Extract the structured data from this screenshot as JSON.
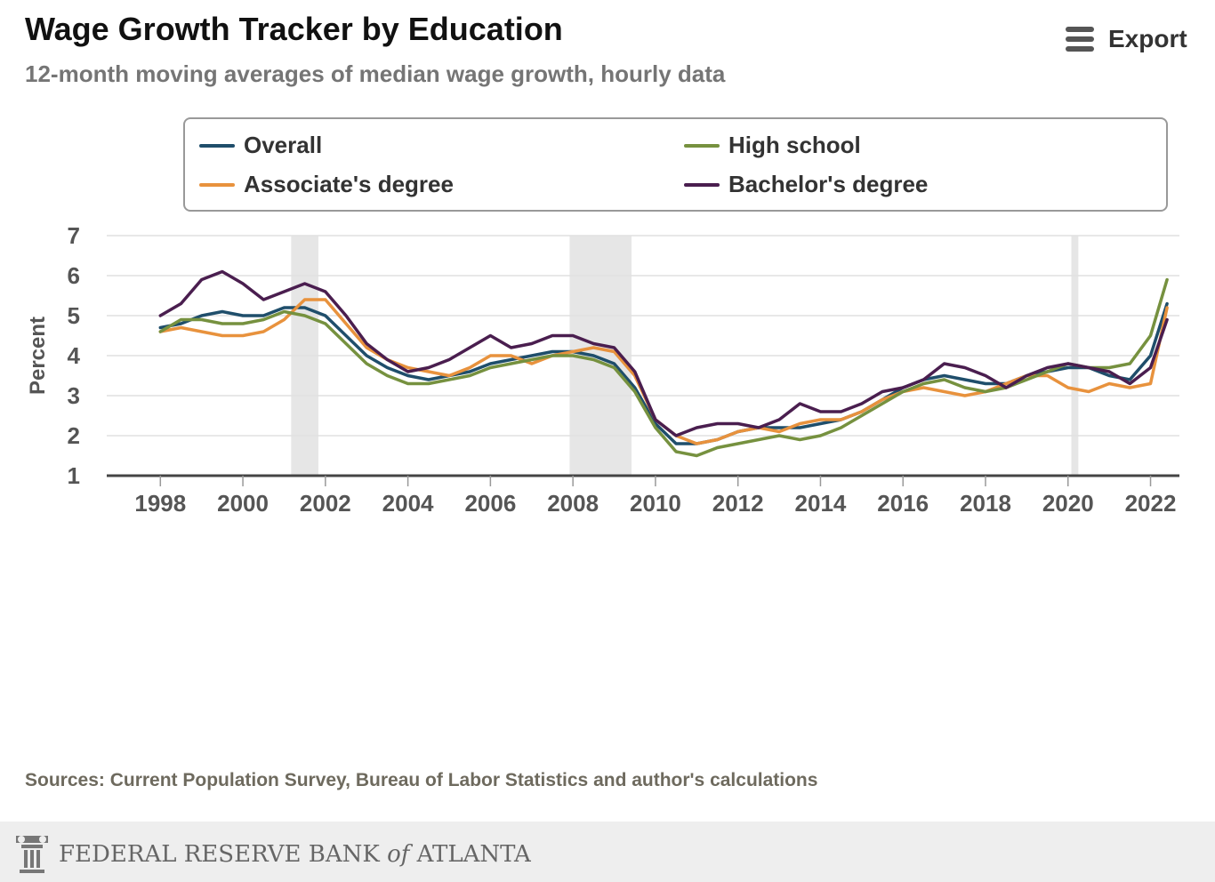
{
  "header": {
    "title": "Wage Growth Tracker by Education",
    "subtitle": "12-month moving averages of median wage growth, hourly data"
  },
  "export": {
    "label": "Export",
    "icon": "hamburger-menu-icon"
  },
  "sources": "Sources: Current Population Survey, Bureau of Labor Statistics and author's calculations",
  "footer": {
    "logo_text_1": "FEDERAL RESERVE BANK",
    "logo_text_of": "of",
    "logo_text_2": "ATLANTA",
    "icon": "fed-atlanta-column-logo-icon"
  },
  "chart_data": {
    "type": "line",
    "title": "Wage Growth Tracker by Education",
    "subtitle": "12-month moving averages of median wage growth, hourly data",
    "xlabel": "",
    "ylabel": "Percent",
    "xlim": [
      1996.7,
      2022.7
    ],
    "ylim": [
      1,
      7
    ],
    "yticks": [
      1,
      2,
      3,
      4,
      5,
      6,
      7
    ],
    "xticks": [
      1998,
      2000,
      2002,
      2004,
      2006,
      2008,
      2010,
      2012,
      2014,
      2016,
      2018,
      2020,
      2022
    ],
    "grid": true,
    "legend_position": "top",
    "recessions": [
      [
        2001.17,
        2001.83
      ],
      [
        2007.92,
        2009.42
      ],
      [
        2020.08,
        2020.25
      ]
    ],
    "series": [
      {
        "name": "Overall",
        "color": "#1f4e6b",
        "x": [
          1998,
          1998.5,
          1999,
          1999.5,
          2000,
          2000.5,
          2001,
          2001.5,
          2002,
          2002.5,
          2003,
          2003.5,
          2004,
          2004.5,
          2005,
          2005.5,
          2006,
          2006.5,
          2007,
          2007.5,
          2008,
          2008.5,
          2009,
          2009.5,
          2010,
          2010.5,
          2011,
          2011.5,
          2012,
          2012.5,
          2013,
          2013.5,
          2014,
          2014.5,
          2015,
          2015.5,
          2016,
          2016.5,
          2017,
          2017.5,
          2018,
          2018.5,
          2019,
          2019.5,
          2020,
          2020.5,
          2021,
          2021.5,
          2022,
          2022.4
        ],
        "y": [
          4.7,
          4.8,
          5.0,
          5.1,
          5.0,
          5.0,
          5.2,
          5.2,
          5.0,
          4.5,
          4.0,
          3.7,
          3.5,
          3.4,
          3.5,
          3.6,
          3.8,
          3.9,
          4.0,
          4.1,
          4.1,
          4.0,
          3.8,
          3.2,
          2.3,
          1.8,
          1.8,
          1.9,
          2.1,
          2.2,
          2.2,
          2.2,
          2.3,
          2.4,
          2.6,
          2.9,
          3.2,
          3.4,
          3.5,
          3.4,
          3.3,
          3.3,
          3.5,
          3.6,
          3.7,
          3.7,
          3.5,
          3.4,
          4.0,
          5.3
        ]
      },
      {
        "name": "Associate's degree",
        "color": "#e8923d",
        "x": [
          1998,
          1998.5,
          1999,
          1999.5,
          2000,
          2000.5,
          2001,
          2001.5,
          2002,
          2002.5,
          2003,
          2003.5,
          2004,
          2004.5,
          2005,
          2005.5,
          2006,
          2006.5,
          2007,
          2007.5,
          2008,
          2008.5,
          2009,
          2009.5,
          2010,
          2010.5,
          2011,
          2011.5,
          2012,
          2012.5,
          2013,
          2013.5,
          2014,
          2014.5,
          2015,
          2015.5,
          2016,
          2016.5,
          2017,
          2017.5,
          2018,
          2018.5,
          2019,
          2019.5,
          2020,
          2020.5,
          2021,
          2021.5,
          2022,
          2022.4
        ],
        "y": [
          4.6,
          4.7,
          4.6,
          4.5,
          4.5,
          4.6,
          4.9,
          5.4,
          5.4,
          4.8,
          4.2,
          3.9,
          3.7,
          3.6,
          3.5,
          3.7,
          4.0,
          4.0,
          3.8,
          4.0,
          4.1,
          4.2,
          4.1,
          3.5,
          2.4,
          2.0,
          1.8,
          1.9,
          2.1,
          2.2,
          2.1,
          2.3,
          2.4,
          2.4,
          2.6,
          2.9,
          3.1,
          3.2,
          3.1,
          3.0,
          3.1,
          3.3,
          3.5,
          3.5,
          3.2,
          3.1,
          3.3,
          3.2,
          3.3,
          5.2
        ]
      },
      {
        "name": "High school",
        "color": "#76913f",
        "x": [
          1998,
          1998.5,
          1999,
          1999.5,
          2000,
          2000.5,
          2001,
          2001.5,
          2002,
          2002.5,
          2003,
          2003.5,
          2004,
          2004.5,
          2005,
          2005.5,
          2006,
          2006.5,
          2007,
          2007.5,
          2008,
          2008.5,
          2009,
          2009.5,
          2010,
          2010.5,
          2011,
          2011.5,
          2012,
          2012.5,
          2013,
          2013.5,
          2014,
          2014.5,
          2015,
          2015.5,
          2016,
          2016.5,
          2017,
          2017.5,
          2018,
          2018.5,
          2019,
          2019.5,
          2020,
          2020.5,
          2021,
          2021.5,
          2022,
          2022.4
        ],
        "y": [
          4.6,
          4.9,
          4.9,
          4.8,
          4.8,
          4.9,
          5.1,
          5.0,
          4.8,
          4.3,
          3.8,
          3.5,
          3.3,
          3.3,
          3.4,
          3.5,
          3.7,
          3.8,
          3.9,
          4.0,
          4.0,
          3.9,
          3.7,
          3.1,
          2.2,
          1.6,
          1.5,
          1.7,
          1.8,
          1.9,
          2.0,
          1.9,
          2.0,
          2.2,
          2.5,
          2.8,
          3.1,
          3.3,
          3.4,
          3.2,
          3.1,
          3.2,
          3.4,
          3.6,
          3.8,
          3.7,
          3.7,
          3.8,
          4.5,
          5.9
        ]
      },
      {
        "name": "Bachelor's degree",
        "color": "#4a1e4f",
        "x": [
          1998,
          1998.5,
          1999,
          1999.5,
          2000,
          2000.5,
          2001,
          2001.5,
          2002,
          2002.5,
          2003,
          2003.5,
          2004,
          2004.5,
          2005,
          2005.5,
          2006,
          2006.5,
          2007,
          2007.5,
          2008,
          2008.5,
          2009,
          2009.5,
          2010,
          2010.5,
          2011,
          2011.5,
          2012,
          2012.5,
          2013,
          2013.5,
          2014,
          2014.5,
          2015,
          2015.5,
          2016,
          2016.5,
          2017,
          2017.5,
          2018,
          2018.5,
          2019,
          2019.5,
          2020,
          2020.5,
          2021,
          2021.5,
          2022,
          2022.4
        ],
        "y": [
          5.0,
          5.3,
          5.9,
          6.1,
          5.8,
          5.4,
          5.6,
          5.8,
          5.6,
          5.0,
          4.3,
          3.9,
          3.6,
          3.7,
          3.9,
          4.2,
          4.5,
          4.2,
          4.3,
          4.5,
          4.5,
          4.3,
          4.2,
          3.6,
          2.4,
          2.0,
          2.2,
          2.3,
          2.3,
          2.2,
          2.4,
          2.8,
          2.6,
          2.6,
          2.8,
          3.1,
          3.2,
          3.4,
          3.8,
          3.7,
          3.5,
          3.2,
          3.5,
          3.7,
          3.8,
          3.7,
          3.6,
          3.3,
          3.7,
          4.9
        ]
      }
    ]
  }
}
